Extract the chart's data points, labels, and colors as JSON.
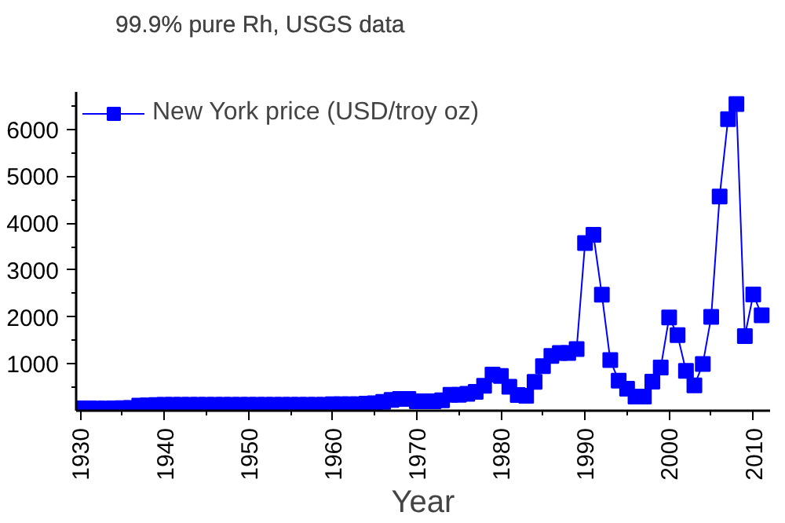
{
  "chart_data": {
    "type": "line",
    "title": "99.9% pure Rh, USGS data",
    "xlabel": "Year",
    "x": [
      1930,
      1931,
      1932,
      1933,
      1934,
      1935,
      1936,
      1937,
      1938,
      1939,
      1940,
      1941,
      1942,
      1943,
      1944,
      1945,
      1946,
      1947,
      1948,
      1949,
      1950,
      1951,
      1952,
      1953,
      1954,
      1955,
      1956,
      1957,
      1958,
      1959,
      1960,
      1961,
      1962,
      1963,
      1964,
      1965,
      1966,
      1967,
      1968,
      1969,
      1970,
      1971,
      1972,
      1973,
      1974,
      1975,
      1976,
      1977,
      1978,
      1979,
      1980,
      1981,
      1982,
      1983,
      1984,
      1985,
      1986,
      1987,
      1988,
      1989,
      1990,
      1991,
      1992,
      1993,
      1994,
      1995,
      1996,
      1997,
      1998,
      1999,
      2000,
      2001,
      2002,
      2003,
      2004,
      2005,
      2006,
      2007,
      2008,
      2009,
      2010,
      2011
    ],
    "series": [
      {
        "name": "New York price (USD/troy oz)",
        "color": "#0000ff",
        "values": [
          50,
          50,
          45,
          45,
          50,
          55,
          60,
          110,
          115,
          120,
          125,
          125,
          125,
          125,
          125,
          125,
          125,
          125,
          125,
          125,
          125,
          125,
          125,
          125,
          125,
          125,
          125,
          125,
          125,
          125,
          140,
          140,
          140,
          140,
          150,
          160,
          190,
          230,
          250,
          250,
          200,
          200,
          200,
          220,
          340,
          340,
          360,
          400,
          530,
          770,
          740,
          510,
          335,
          320,
          615,
          950,
          1170,
          1230,
          1230,
          1315,
          3575,
          3750,
          2475,
          1080,
          640,
          470,
          300,
          300,
          620,
          920,
          1990,
          1610,
          850,
          540,
          995,
          2000,
          4570,
          6220,
          6540,
          1590,
          2480,
          2035
        ]
      }
    ],
    "xlim": [
      1929.5,
      2012
    ],
    "ylim": [
      0,
      6800
    ],
    "xticks": [
      1930,
      1940,
      1950,
      1960,
      1970,
      1980,
      1990,
      2000,
      2010
    ],
    "yticks": [
      1000,
      2000,
      3000,
      4000,
      5000,
      6000
    ],
    "grid": false,
    "legend": "top left",
    "marker": "square",
    "line_style": "solid"
  }
}
